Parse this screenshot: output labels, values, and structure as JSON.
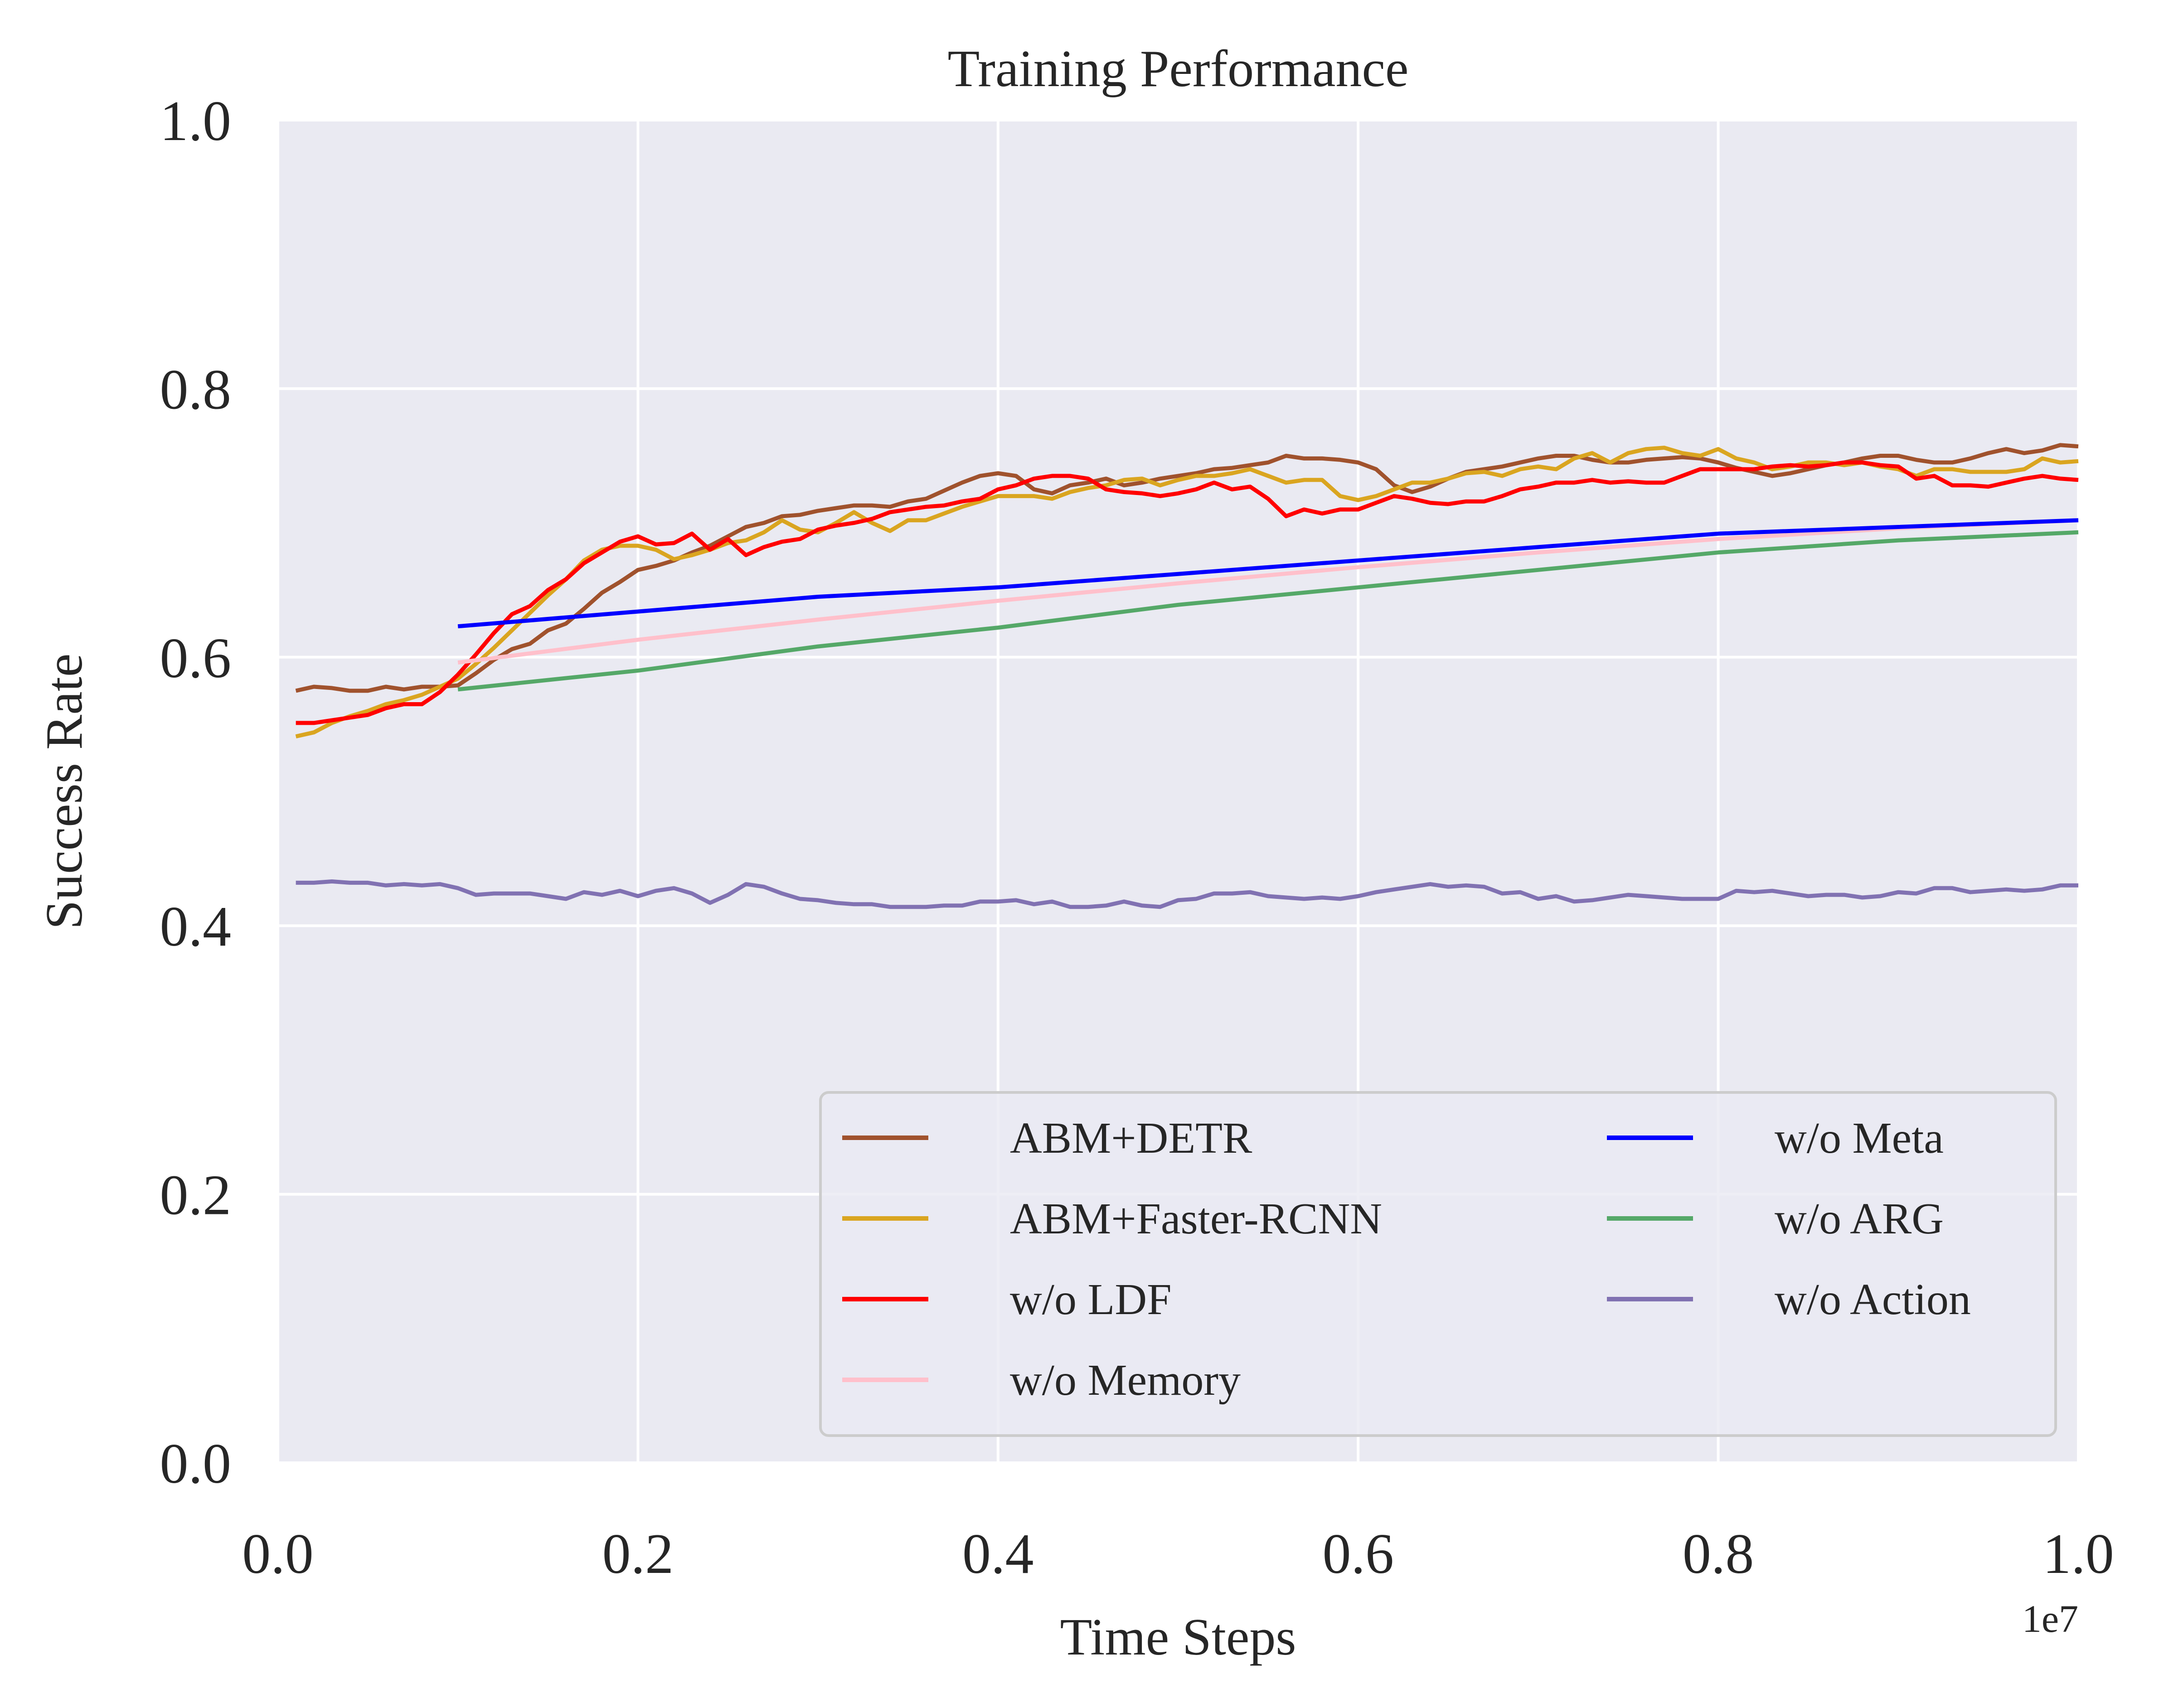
{
  "chart_data": {
    "type": "line",
    "title": "Training Performance",
    "xlabel": "Time Steps",
    "ylabel": "Success Rate",
    "x_offset_label": "1e7",
    "xlim": [
      0.0,
      1.0
    ],
    "ylim": [
      0.0,
      1.0
    ],
    "x_ticks": [
      "0.0",
      "0.2",
      "0.4",
      "0.6",
      "0.8",
      "1.0"
    ],
    "y_ticks": [
      "0.0",
      "0.2",
      "0.4",
      "0.6",
      "0.8",
      "1.0"
    ],
    "grid": true,
    "legend_position": "lower right",
    "legend_columns": 2,
    "background_color": "#eaeaf2",
    "series": [
      {
        "name": "ABM+DETR",
        "color": "#a0522d",
        "x": [
          0.01,
          0.02,
          0.03,
          0.04,
          0.05,
          0.06,
          0.07,
          0.08,
          0.09,
          0.1,
          0.11,
          0.12,
          0.13,
          0.14,
          0.15,
          0.16,
          0.17,
          0.18,
          0.19,
          0.2,
          0.21,
          0.22,
          0.23,
          0.24,
          0.25,
          0.26,
          0.27,
          0.28,
          0.29,
          0.3,
          0.31,
          0.32,
          0.33,
          0.34,
          0.35,
          0.36,
          0.37,
          0.38,
          0.39,
          0.4,
          0.41,
          0.42,
          0.43,
          0.44,
          0.45,
          0.46,
          0.47,
          0.48,
          0.49,
          0.5,
          0.51,
          0.52,
          0.53,
          0.54,
          0.55,
          0.56,
          0.57,
          0.58,
          0.59,
          0.6,
          0.61,
          0.62,
          0.63,
          0.64,
          0.65,
          0.66,
          0.67,
          0.68,
          0.69,
          0.7,
          0.71,
          0.72,
          0.73,
          0.74,
          0.75,
          0.76,
          0.77,
          0.78,
          0.79,
          0.8,
          0.81,
          0.82,
          0.83,
          0.84,
          0.85,
          0.86,
          0.87,
          0.88,
          0.89,
          0.9,
          0.91,
          0.92,
          0.93,
          0.94,
          0.95,
          0.96,
          0.97,
          0.98,
          0.99,
          1.0
        ],
        "y": [
          0.575,
          0.578,
          0.577,
          0.575,
          0.575,
          0.578,
          0.576,
          0.578,
          0.578,
          0.579,
          0.588,
          0.598,
          0.606,
          0.61,
          0.62,
          0.625,
          0.636,
          0.648,
          0.656,
          0.665,
          0.668,
          0.672,
          0.678,
          0.683,
          0.69,
          0.697,
          0.7,
          0.705,
          0.706,
          0.709,
          0.711,
          0.713,
          0.713,
          0.712,
          0.716,
          0.718,
          0.724,
          0.73,
          0.735,
          0.737,
          0.735,
          0.725,
          0.722,
          0.728,
          0.73,
          0.733,
          0.728,
          0.73,
          0.733,
          0.735,
          0.737,
          0.74,
          0.741,
          0.743,
          0.745,
          0.75,
          0.748,
          0.748,
          0.747,
          0.745,
          0.74,
          0.728,
          0.723,
          0.727,
          0.733,
          0.738,
          0.74,
          0.742,
          0.745,
          0.748,
          0.75,
          0.75,
          0.747,
          0.745,
          0.745,
          0.747,
          0.748,
          0.749,
          0.748,
          0.745,
          0.741,
          0.738,
          0.735,
          0.737,
          0.74,
          0.743,
          0.745,
          0.748,
          0.75,
          0.75,
          0.747,
          0.745,
          0.745,
          0.748,
          0.752,
          0.755,
          0.752,
          0.754,
          0.758,
          0.757
        ]
      },
      {
        "name": "ABM+Faster-RCNN",
        "color": "#daa520",
        "x": [
          0.01,
          0.02,
          0.03,
          0.04,
          0.05,
          0.06,
          0.07,
          0.08,
          0.09,
          0.1,
          0.11,
          0.12,
          0.13,
          0.14,
          0.15,
          0.16,
          0.17,
          0.18,
          0.19,
          0.2,
          0.21,
          0.22,
          0.23,
          0.24,
          0.25,
          0.26,
          0.27,
          0.28,
          0.29,
          0.3,
          0.31,
          0.32,
          0.33,
          0.34,
          0.35,
          0.36,
          0.37,
          0.38,
          0.39,
          0.4,
          0.41,
          0.42,
          0.43,
          0.44,
          0.45,
          0.46,
          0.47,
          0.48,
          0.49,
          0.5,
          0.51,
          0.52,
          0.53,
          0.54,
          0.55,
          0.56,
          0.57,
          0.58,
          0.59,
          0.6,
          0.61,
          0.62,
          0.63,
          0.64,
          0.65,
          0.66,
          0.67,
          0.68,
          0.69,
          0.7,
          0.71,
          0.72,
          0.73,
          0.74,
          0.75,
          0.76,
          0.77,
          0.78,
          0.79,
          0.8,
          0.81,
          0.82,
          0.83,
          0.84,
          0.85,
          0.86,
          0.87,
          0.88,
          0.89,
          0.9,
          0.91,
          0.92,
          0.93,
          0.94,
          0.95,
          0.96,
          0.97,
          0.98,
          0.99,
          1.0
        ],
        "y": [
          0.541,
          0.544,
          0.551,
          0.556,
          0.56,
          0.565,
          0.568,
          0.572,
          0.578,
          0.584,
          0.595,
          0.607,
          0.62,
          0.633,
          0.646,
          0.658,
          0.672,
          0.68,
          0.683,
          0.683,
          0.68,
          0.673,
          0.676,
          0.68,
          0.685,
          0.687,
          0.693,
          0.702,
          0.695,
          0.693,
          0.7,
          0.708,
          0.7,
          0.694,
          0.702,
          0.702,
          0.707,
          0.712,
          0.716,
          0.72,
          0.72,
          0.72,
          0.718,
          0.723,
          0.726,
          0.728,
          0.732,
          0.733,
          0.728,
          0.732,
          0.735,
          0.735,
          0.737,
          0.74,
          0.735,
          0.73,
          0.732,
          0.732,
          0.72,
          0.717,
          0.72,
          0.725,
          0.73,
          0.73,
          0.733,
          0.737,
          0.738,
          0.735,
          0.74,
          0.742,
          0.74,
          0.748,
          0.752,
          0.745,
          0.752,
          0.755,
          0.756,
          0.752,
          0.75,
          0.755,
          0.748,
          0.745,
          0.74,
          0.742,
          0.745,
          0.745,
          0.743,
          0.745,
          0.742,
          0.74,
          0.735,
          0.74,
          0.74,
          0.738,
          0.738,
          0.738,
          0.74,
          0.748,
          0.745,
          0.746
        ]
      },
      {
        "name": "w/o LDF",
        "color": "#ff0000",
        "x": [
          0.01,
          0.02,
          0.03,
          0.04,
          0.05,
          0.06,
          0.07,
          0.08,
          0.09,
          0.1,
          0.11,
          0.12,
          0.13,
          0.14,
          0.15,
          0.16,
          0.17,
          0.18,
          0.19,
          0.2,
          0.21,
          0.22,
          0.23,
          0.24,
          0.25,
          0.26,
          0.27,
          0.28,
          0.29,
          0.3,
          0.31,
          0.32,
          0.33,
          0.34,
          0.35,
          0.36,
          0.37,
          0.38,
          0.39,
          0.4,
          0.41,
          0.42,
          0.43,
          0.44,
          0.45,
          0.46,
          0.47,
          0.48,
          0.49,
          0.5,
          0.51,
          0.52,
          0.53,
          0.54,
          0.55,
          0.56,
          0.57,
          0.58,
          0.59,
          0.6,
          0.61,
          0.62,
          0.63,
          0.64,
          0.65,
          0.66,
          0.67,
          0.68,
          0.69,
          0.7,
          0.71,
          0.72,
          0.73,
          0.74,
          0.75,
          0.76,
          0.77,
          0.78,
          0.79,
          0.8,
          0.81,
          0.82,
          0.83,
          0.84,
          0.85,
          0.86,
          0.87,
          0.88,
          0.89,
          0.9,
          0.91,
          0.92,
          0.93,
          0.94,
          0.95,
          0.96,
          0.97,
          0.98,
          0.99,
          1.0
        ],
        "y": [
          0.551,
          0.551,
          0.553,
          0.555,
          0.557,
          0.562,
          0.565,
          0.565,
          0.574,
          0.587,
          0.602,
          0.618,
          0.632,
          0.638,
          0.65,
          0.658,
          0.67,
          0.678,
          0.686,
          0.69,
          0.684,
          0.685,
          0.692,
          0.68,
          0.688,
          0.676,
          0.682,
          0.686,
          0.688,
          0.695,
          0.698,
          0.7,
          0.703,
          0.708,
          0.71,
          0.712,
          0.713,
          0.716,
          0.718,
          0.725,
          0.728,
          0.733,
          0.735,
          0.735,
          0.733,
          0.725,
          0.723,
          0.722,
          0.72,
          0.722,
          0.725,
          0.73,
          0.725,
          0.727,
          0.718,
          0.705,
          0.71,
          0.707,
          0.71,
          0.71,
          0.715,
          0.72,
          0.718,
          0.715,
          0.714,
          0.716,
          0.716,
          0.72,
          0.725,
          0.727,
          0.73,
          0.73,
          0.732,
          0.73,
          0.731,
          0.73,
          0.73,
          0.735,
          0.74,
          0.74,
          0.74,
          0.74,
          0.742,
          0.743,
          0.742,
          0.743,
          0.745,
          0.745,
          0.743,
          0.742,
          0.733,
          0.735,
          0.728,
          0.728,
          0.727,
          0.73,
          0.733,
          0.735,
          0.733,
          0.732
        ]
      },
      {
        "name": "w/o Memory",
        "color": "#ffc0cb",
        "x": [
          0.1,
          0.2,
          0.3,
          0.4,
          0.5,
          0.6,
          0.7,
          0.8,
          0.9,
          1.0
        ],
        "y": [
          0.596,
          0.613,
          0.628,
          0.642,
          0.655,
          0.667,
          0.678,
          0.688,
          0.696,
          0.702
        ]
      },
      {
        "name": "w/o Meta",
        "color": "#0000ff",
        "x": [
          0.1,
          0.2,
          0.3,
          0.4,
          0.5,
          0.6,
          0.7,
          0.8,
          0.9,
          1.0
        ],
        "y": [
          0.623,
          0.634,
          0.645,
          0.652,
          0.662,
          0.672,
          0.682,
          0.692,
          0.697,
          0.702
        ]
      },
      {
        "name": "w/o ARG",
        "color": "#55a868",
        "x": [
          0.1,
          0.2,
          0.3,
          0.4,
          0.5,
          0.6,
          0.7,
          0.8,
          0.9,
          1.0
        ],
        "y": [
          0.576,
          0.59,
          0.608,
          0.622,
          0.639,
          0.652,
          0.665,
          0.678,
          0.687,
          0.693
        ]
      },
      {
        "name": "w/o Action",
        "color": "#8172b2",
        "x": [
          0.01,
          0.02,
          0.03,
          0.04,
          0.05,
          0.06,
          0.07,
          0.08,
          0.09,
          0.1,
          0.11,
          0.12,
          0.13,
          0.14,
          0.15,
          0.16,
          0.17,
          0.18,
          0.19,
          0.2,
          0.21,
          0.22,
          0.23,
          0.24,
          0.25,
          0.26,
          0.27,
          0.28,
          0.29,
          0.3,
          0.31,
          0.32,
          0.33,
          0.34,
          0.35,
          0.36,
          0.37,
          0.38,
          0.39,
          0.4,
          0.41,
          0.42,
          0.43,
          0.44,
          0.45,
          0.46,
          0.47,
          0.48,
          0.49,
          0.5,
          0.51,
          0.52,
          0.53,
          0.54,
          0.55,
          0.56,
          0.57,
          0.58,
          0.59,
          0.6,
          0.61,
          0.62,
          0.63,
          0.64,
          0.65,
          0.66,
          0.67,
          0.68,
          0.69,
          0.7,
          0.71,
          0.72,
          0.73,
          0.74,
          0.75,
          0.76,
          0.77,
          0.78,
          0.79,
          0.8,
          0.81,
          0.82,
          0.83,
          0.84,
          0.85,
          0.86,
          0.87,
          0.88,
          0.89,
          0.9,
          0.91,
          0.92,
          0.93,
          0.94,
          0.95,
          0.96,
          0.97,
          0.98,
          0.99,
          1.0
        ],
        "y": [
          0.432,
          0.432,
          0.433,
          0.432,
          0.432,
          0.43,
          0.431,
          0.43,
          0.431,
          0.428,
          0.423,
          0.424,
          0.424,
          0.424,
          0.422,
          0.42,
          0.425,
          0.423,
          0.426,
          0.422,
          0.426,
          0.428,
          0.424,
          0.417,
          0.423,
          0.431,
          0.429,
          0.424,
          0.42,
          0.419,
          0.417,
          0.416,
          0.416,
          0.414,
          0.414,
          0.414,
          0.415,
          0.415,
          0.418,
          0.418,
          0.419,
          0.416,
          0.418,
          0.414,
          0.414,
          0.415,
          0.418,
          0.415,
          0.414,
          0.419,
          0.42,
          0.424,
          0.424,
          0.425,
          0.422,
          0.421,
          0.42,
          0.421,
          0.42,
          0.422,
          0.425,
          0.427,
          0.429,
          0.431,
          0.429,
          0.43,
          0.429,
          0.424,
          0.425,
          0.42,
          0.422,
          0.418,
          0.419,
          0.421,
          0.423,
          0.422,
          0.421,
          0.42,
          0.42,
          0.42,
          0.426,
          0.425,
          0.426,
          0.424,
          0.422,
          0.423,
          0.423,
          0.421,
          0.422,
          0.425,
          0.424,
          0.428,
          0.428,
          0.425,
          0.426,
          0.427,
          0.426,
          0.427,
          0.43,
          0.43
        ]
      }
    ]
  }
}
